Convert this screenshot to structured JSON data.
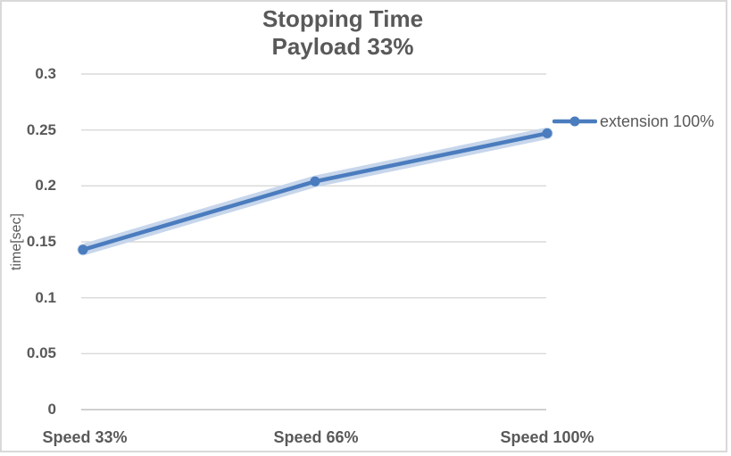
{
  "chart_data": {
    "type": "line",
    "title": {
      "line1": "Stopping Time",
      "line2": "Payload 33%"
    },
    "categories": [
      "Speed 33%",
      "Speed 66%",
      "Speed 100%"
    ],
    "series": [
      {
        "name": "extension 100%",
        "values": [
          0.143,
          0.204,
          0.247
        ]
      }
    ],
    "xlabel": "",
    "ylabel": "time[sec]",
    "ylim": [
      0,
      0.3
    ],
    "ytick_step": 0.05,
    "ytick_labels": [
      "0.3",
      "0.25",
      "0.2",
      "0.15",
      "0.1",
      "0.05",
      "0"
    ],
    "grid": "horizontal",
    "legend_position": "right",
    "colors": {
      "line": "#4A7CBE",
      "halo": "#C7D6EB",
      "grid": "#D9D9D9",
      "axis": "#C0C0C0",
      "text": "#595959"
    }
  }
}
